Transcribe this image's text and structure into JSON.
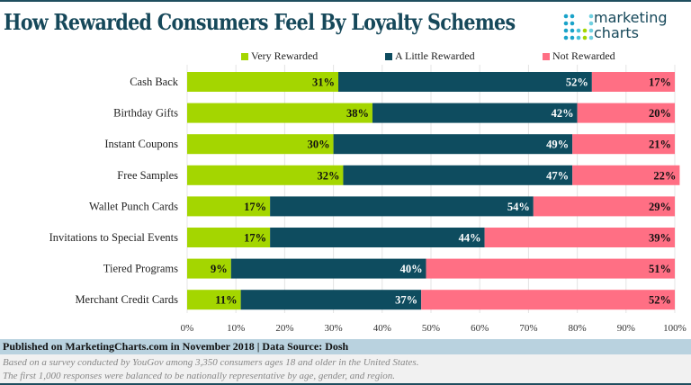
{
  "title": "How Rewarded Consumers Feel By Loyalty Schemes",
  "logo": {
    "line1": "marketing",
    "line2": "charts"
  },
  "footer": {
    "published": "Published on MarketingCharts.com in November 2018 | Data Source: Dosh",
    "note1": "Based on a survey conducted by YouGov among 3,350 consumers ages 18 and older in the United States.",
    "note2": "The first 1,000 responses were balanced to be nationally representative by age, gender, and region."
  },
  "chart_data": {
    "type": "bar",
    "orientation": "horizontal",
    "stacked": true,
    "categories": [
      "Cash Back",
      "Birthday Gifts",
      "Instant Coupons",
      "Free Samples",
      "Wallet Punch Cards",
      "Invitations to Special Events",
      "Tiered Programs",
      "Merchant Credit Cards"
    ],
    "series": [
      {
        "name": "Very Rewarded",
        "color": "#a4d600",
        "values": [
          31,
          38,
          30,
          32,
          17,
          17,
          9,
          11
        ]
      },
      {
        "name": "A Little Rewarded",
        "color": "#0e4c5f",
        "values": [
          52,
          42,
          49,
          47,
          54,
          44,
          40,
          37
        ]
      },
      {
        "name": "Not Rewarded",
        "color": "#ff6f84",
        "values": [
          17,
          20,
          21,
          22,
          29,
          39,
          51,
          52
        ]
      }
    ],
    "xlim": [
      0,
      100
    ],
    "xticks": [
      "0%",
      "10%",
      "20%",
      "30%",
      "40%",
      "50%",
      "60%",
      "70%",
      "80%",
      "90%",
      "100%"
    ],
    "legend": "top",
    "grid": true
  }
}
